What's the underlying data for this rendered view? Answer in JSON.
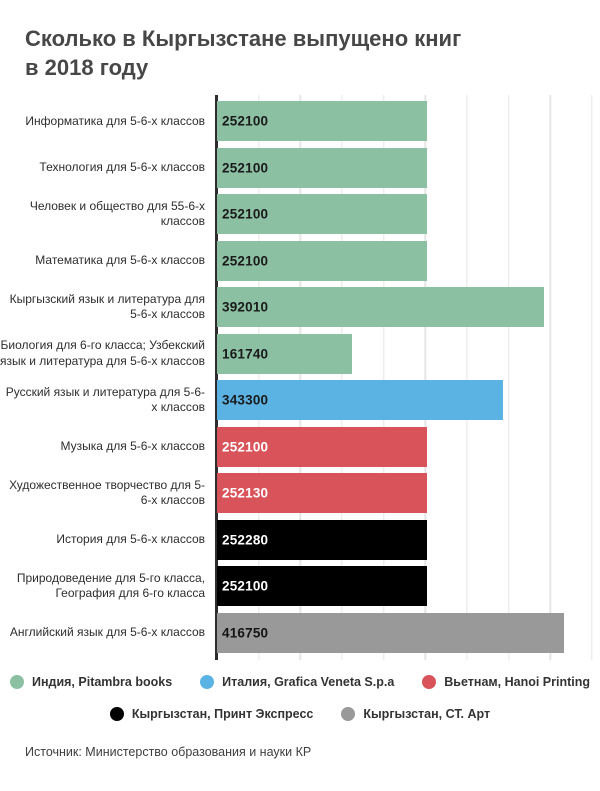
{
  "title": {
    "line1": "Сколько в Кыргызстане выпущено книг",
    "line2": "в 2018 году"
  },
  "source": "Источник: Министерство образования и науки КР",
  "chart_data": {
    "type": "bar",
    "orientation": "horizontal",
    "title": "Сколько в Кыргызстане выпущено книг в 2018 году",
    "xlabel": "",
    "ylabel": "",
    "xlim": [
      0,
      450000
    ],
    "grid_interval": 50000,
    "grid": true,
    "legend_position": "bottom",
    "palette": {
      "green": "#8CC0A2",
      "blue": "#5BB3E4",
      "red": "#D9545A",
      "black": "#000000",
      "gray": "#999999"
    },
    "value_text_colors": {
      "green": "#1a1a1a",
      "blue": "#1a1a1a",
      "red": "#ffffff",
      "black": "#ffffff",
      "gray": "#141414"
    },
    "rows": [
      {
        "label": "Информатика для 5-6-х классов",
        "value": 252100,
        "value_label": "252100",
        "color": "green"
      },
      {
        "label": "Технология для 5-6-х классов",
        "value": 252100,
        "value_label": "252100",
        "color": "green"
      },
      {
        "label": "Человек и общество для 55-6-х классов",
        "value": 252100,
        "value_label": "252100",
        "color": "green"
      },
      {
        "label": "Математика для 5-6-х классов",
        "value": 252100,
        "value_label": "252100",
        "color": "green"
      },
      {
        "label": "Кыргызский язык и литература для 5-6-х классов",
        "value": 392010,
        "value_label": "392010",
        "color": "green"
      },
      {
        "label": "Биология для 6-го класса; Узбекский язык и литература для 5-6-х классов",
        "value": 161740,
        "value_label": "161740",
        "color": "green"
      },
      {
        "label": "Русский язык и литература для 5-6-х классов",
        "value": 343300,
        "value_label": "343300",
        "color": "blue"
      },
      {
        "label": "Музыка для 5-6-х классов",
        "value": 252100,
        "value_label": "252100",
        "color": "red"
      },
      {
        "label": "Художественное творчество для 5-6-х классов",
        "value": 252130,
        "value_label": "252130",
        "color": "red"
      },
      {
        "label": "История для 5-6-х классов",
        "value": 252280,
        "value_label": "252280",
        "color": "black"
      },
      {
        "label": "Природоведение для 5-го класса, География для 6-го класса",
        "value": 252100,
        "value_label": "252100",
        "color": "black"
      },
      {
        "label": "Английский язык для 5-6-х классов",
        "value": 416750,
        "value_label": "416750",
        "color": "gray"
      }
    ],
    "legend_rows": [
      {
        "items": [
          {
            "label": "Индия, Pitambra books",
            "color": "green"
          },
          {
            "label": "Италия, Grafica Veneta S.p.a",
            "color": "blue"
          },
          {
            "label": "Вьетнам, Hanoi Printing",
            "color": "red"
          }
        ]
      },
      {
        "items": [
          {
            "label": "Кыргызстан, Принт Экспресс",
            "color": "black"
          },
          {
            "label": "Кыргызстан, СТ. Арт",
            "color": "gray"
          }
        ]
      }
    ]
  }
}
